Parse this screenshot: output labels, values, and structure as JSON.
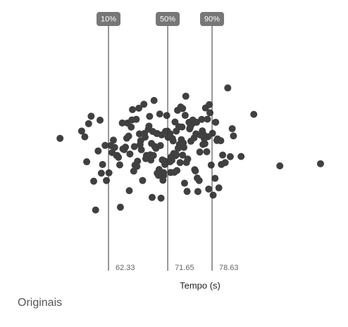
{
  "chart_data": {
    "type": "strip",
    "x_label": "Tempo (s)",
    "caption": "Originais",
    "xlim": [
      54,
      98
    ],
    "color": "#404040",
    "percentiles": [
      {
        "label": "10%",
        "value": 62.33
      },
      {
        "label": "50%",
        "value": 71.65
      },
      {
        "label": "90%",
        "value": 78.63
      }
    ],
    "x": [
      54.7,
      95.7,
      89.3,
      85.2,
      83.2,
      58.1,
      58.6,
      58.9,
      59.2,
      59.6,
      60.3,
      60.7,
      61.0,
      61.4,
      61.8,
      62.0,
      62.4,
      62.7,
      63.1,
      63.3,
      63.6,
      63.9,
      64.2,
      64.5,
      64.8,
      65.0,
      65.2,
      65.5,
      65.7,
      65.9,
      66.1,
      66.3,
      66.5,
      66.7,
      66.9,
      67.1,
      67.3,
      67.5,
      67.7,
      67.9,
      68.1,
      68.3,
      68.5,
      68.7,
      68.9,
      69.1,
      69.3,
      69.5,
      69.6,
      69.8,
      70.0,
      70.1,
      70.3,
      70.4,
      70.6,
      70.7,
      70.9,
      71.0,
      71.2,
      71.3,
      71.5,
      71.6,
      71.8,
      71.9,
      72.1,
      72.2,
      72.4,
      72.5,
      72.7,
      72.8,
      73.0,
      73.1,
      73.3,
      73.4,
      73.6,
      73.7,
      73.9,
      74.0,
      74.2,
      74.3,
      74.5,
      74.6,
      74.8,
      75.0,
      75.2,
      75.4,
      75.6,
      75.8,
      76.0,
      76.2,
      76.4,
      76.6,
      76.8,
      77.0,
      77.2,
      77.4,
      77.6,
      77.8,
      78.0,
      78.2,
      78.5,
      78.8,
      79.1,
      79.4,
      79.7,
      80.0,
      80.3,
      80.7,
      81.1,
      81.5,
      82.0,
      64.1,
      65.3,
      66.0,
      66.8,
      67.4,
      68.0,
      68.6,
      69.0,
      69.4,
      69.9,
      70.2,
      70.5,
      70.8,
      71.1,
      71.4,
      71.7,
      72.0,
      72.3,
      72.6,
      72.9,
      73.2,
      73.5,
      73.8,
      74.1,
      74.4,
      74.7,
      75.1,
      75.5,
      75.9,
      76.3,
      76.7,
      77.1,
      77.5,
      77.9,
      78.3,
      78.7,
      79.2,
      80.1,
      60.0,
      61.2,
      62.9,
      63.7,
      64.6,
      65.6,
      66.4,
      67.2,
      68.2,
      68.8,
      69.2,
      70.0,
      71.0,
      72.0,
      73.0,
      74.0,
      75.3,
      76.1,
      77.3,
      78.1,
      79.5,
      81.8
    ]
  }
}
